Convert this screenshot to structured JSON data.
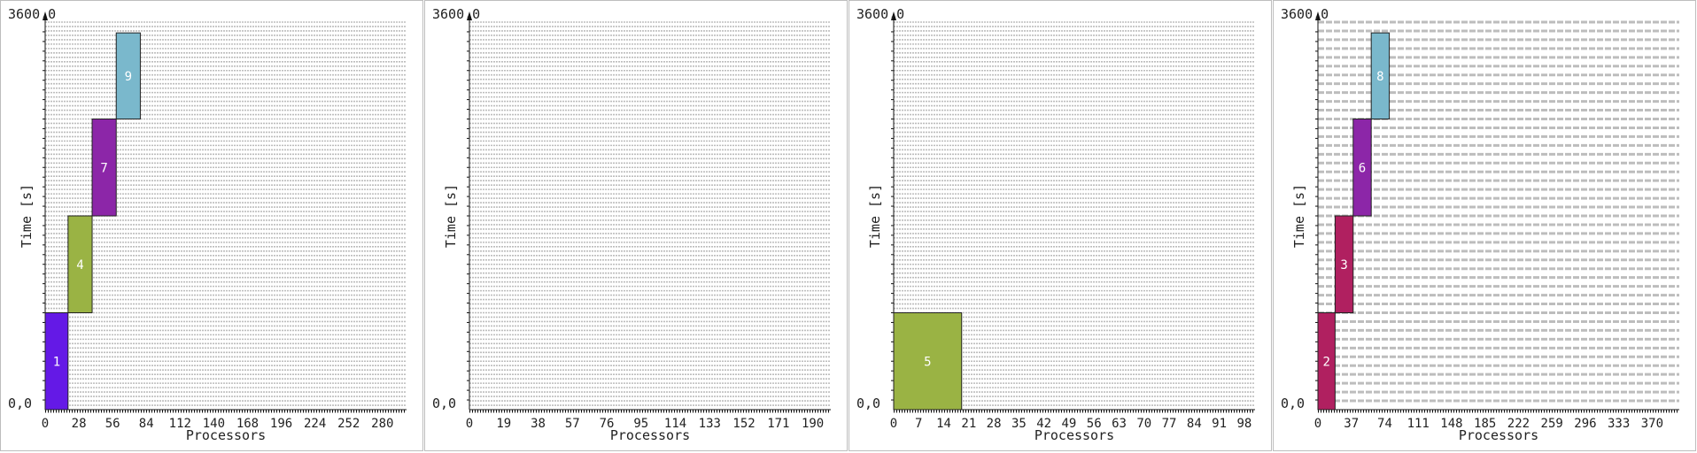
{
  "colors": {
    "grid": "#bdbdbd",
    "axis": "#111111",
    "panel_border": "#bdbdbd"
  },
  "chart_data": [
    {
      "type": "bar",
      "subtype": "gantt",
      "xlabel": "Processors",
      "ylabel": "Time [s]",
      "y_top_label": "3600,0",
      "y_bottom_label": "0,0",
      "ylim": [
        0,
        3600
      ],
      "xlim": [
        0,
        300
      ],
      "xticks": [
        0,
        28,
        56,
        84,
        112,
        140,
        168,
        196,
        224,
        252,
        280
      ],
      "grid_rows": 88,
      "jobs": [
        {
          "id": "1",
          "x0": 0,
          "x1": 19,
          "y0": 0,
          "y1": 900,
          "color": "#6419e6"
        },
        {
          "id": "4",
          "x0": 19,
          "x1": 39,
          "y0": 900,
          "y1": 1800,
          "color": "#9ab344"
        },
        {
          "id": "7",
          "x0": 39,
          "x1": 59,
          "y0": 1800,
          "y1": 2700,
          "color": "#8c26a8"
        },
        {
          "id": "9",
          "x0": 59,
          "x1": 79,
          "y0": 2700,
          "y1": 3500,
          "color": "#7ab8cc"
        }
      ]
    },
    {
      "type": "bar",
      "subtype": "gantt",
      "xlabel": "Processors",
      "ylabel": "Time [s]",
      "y_top_label": "3600,0",
      "y_bottom_label": "0,0",
      "ylim": [
        0,
        3600
      ],
      "xlim": [
        0,
        200
      ],
      "xticks": [
        0,
        19,
        38,
        57,
        76,
        95,
        114,
        133,
        152,
        171,
        190
      ],
      "grid_rows": 88,
      "jobs": []
    },
    {
      "type": "bar",
      "subtype": "gantt",
      "xlabel": "Processors",
      "ylabel": "Time [s]",
      "y_top_label": "3600,0",
      "y_bottom_label": "0,0",
      "ylim": [
        0,
        3600
      ],
      "xlim": [
        0,
        101
      ],
      "xticks": [
        0,
        7,
        14,
        21,
        28,
        35,
        42,
        49,
        56,
        63,
        70,
        77,
        84,
        91,
        98
      ],
      "grid_rows": 88,
      "jobs": [
        {
          "id": "5",
          "x0": 0,
          "x1": 19,
          "y0": 0,
          "y1": 900,
          "color": "#9ab344"
        }
      ]
    },
    {
      "type": "bar",
      "subtype": "gantt",
      "xlabel": "Processors",
      "ylabel": "Time [s]",
      "y_top_label": "3600,0",
      "y_bottom_label": "0,0",
      "ylim": [
        0,
        3600
      ],
      "xlim": [
        0,
        400
      ],
      "xticks": [
        0,
        37,
        74,
        111,
        148,
        185,
        222,
        259,
        296,
        333,
        370
      ],
      "grid_rows": 44,
      "jobs": [
        {
          "id": "2",
          "x0": 0,
          "x1": 19,
          "y0": 0,
          "y1": 900,
          "color": "#b02060"
        },
        {
          "id": "3",
          "x0": 19,
          "x1": 39,
          "y0": 900,
          "y1": 1800,
          "color": "#b02060"
        },
        {
          "id": "6",
          "x0": 39,
          "x1": 59,
          "y0": 1800,
          "y1": 2700,
          "color": "#8c26a8"
        },
        {
          "id": "8",
          "x0": 59,
          "x1": 79,
          "y0": 2700,
          "y1": 3500,
          "color": "#7ab8cc"
        }
      ]
    }
  ]
}
